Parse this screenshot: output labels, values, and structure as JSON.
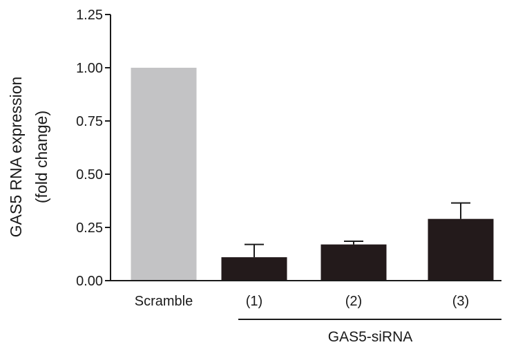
{
  "chart_data": {
    "type": "bar",
    "categories": [
      "Scramble",
      "(1)",
      "(2)",
      "(3)"
    ],
    "values": [
      1.0,
      0.11,
      0.17,
      0.29
    ],
    "error_upper": [
      0,
      0.06,
      0.015,
      0.075
    ],
    "bar_colors": [
      "#c3c3c5",
      "#231a1b",
      "#231a1b",
      "#231a1b"
    ],
    "ylabel_lines": [
      "GAS5 RNA expression",
      "(fold change)"
    ],
    "ylim": [
      0,
      1.25
    ],
    "yticks": [
      "0.00",
      "0.25",
      "0.50",
      "0.75",
      "1.00",
      "1.25"
    ],
    "ytick_values": [
      0,
      0.25,
      0.5,
      0.75,
      1.0,
      1.25
    ],
    "group_label": "GAS5-siRNA",
    "group_categories": [
      "(1)",
      "(2)",
      "(3)"
    ],
    "grid": false,
    "legend": "none"
  }
}
